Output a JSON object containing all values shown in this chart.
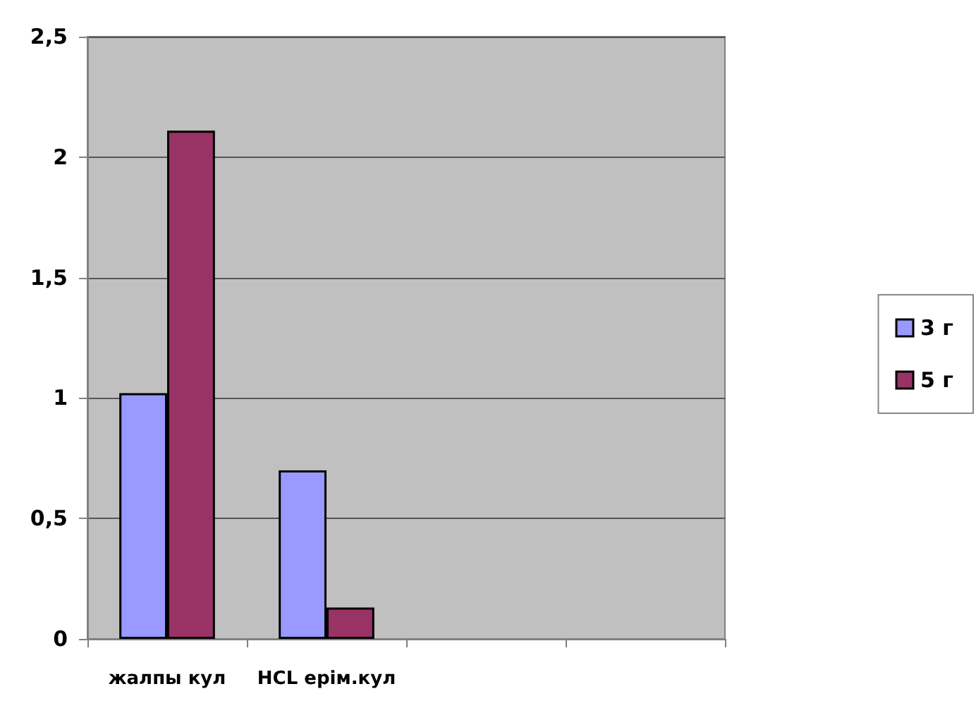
{
  "chart_data": {
    "type": "bar",
    "categories": [
      "жалпы кул",
      "HCL ерім.кул",
      null,
      null
    ],
    "series": [
      {
        "name": "3 г",
        "color": "#9999ff",
        "values": [
          1.02,
          0.7,
          null,
          null
        ]
      },
      {
        "name": "5 г",
        "color": "#993366",
        "values": [
          2.11,
          0.13,
          null,
          null
        ]
      }
    ],
    "ylim": [
      0,
      2.5
    ],
    "yticks": [
      0,
      {
        "value": 0.5,
        "label": "0,5"
      },
      1,
      {
        "value": 1.5,
        "label": "1,5"
      },
      2,
      {
        "value": 2.5,
        "label": "2,5"
      }
    ],
    "grid": "y",
    "legend": "right"
  }
}
